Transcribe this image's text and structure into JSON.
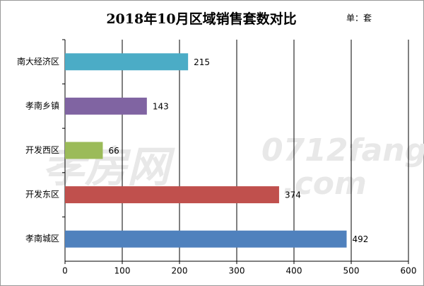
{
  "chart_data": {
    "type": "bar",
    "orientation": "horizontal",
    "title": "2018年10月区域销售套数对比",
    "unit_note": "单：套",
    "watermark": [
      "孝房网",
      "0712fang",
      ".com"
    ],
    "categories": [
      "南大经济区",
      "孝南乡镇",
      "开发西区",
      "开发东区",
      "孝南城区"
    ],
    "values": [
      215,
      143,
      66,
      374,
      492
    ],
    "colors": [
      "#4bacc6",
      "#8064a2",
      "#9bbb59",
      "#c0504d",
      "#4f81bd"
    ],
    "xlim": [
      0,
      600
    ],
    "xticks": [
      0,
      100,
      200,
      300,
      400,
      500,
      600
    ],
    "grid": true
  }
}
